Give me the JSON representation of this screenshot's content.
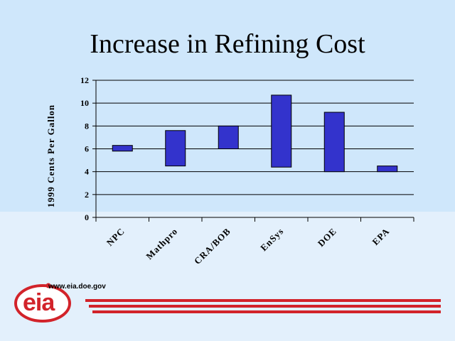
{
  "title": "Increase in Refining Cost",
  "logo": {
    "url": "www.eia.doe.gov",
    "wordmark": "eia"
  },
  "colors": {
    "bar": "#3333cc",
    "background": "#cfe7fb",
    "logo_red": "#d2232a"
  },
  "chart_data": {
    "type": "bar",
    "subtype": "floating-range",
    "title": "Increase in Refining Cost",
    "xlabel": "",
    "ylabel": "1999 Cents Per Gallon",
    "ylim": [
      0,
      12
    ],
    "yticks": [
      0,
      2,
      4,
      6,
      8,
      10,
      12
    ],
    "grid": true,
    "categories": [
      "NPC",
      "Mathpro",
      "CRA/BOB",
      "EnSys",
      "DOE",
      "EPA"
    ],
    "series": [
      {
        "low": [
          5.8,
          4.5,
          6.0,
          4.4,
          4.0,
          4.0
        ],
        "high": [
          6.3,
          7.6,
          8.0,
          10.7,
          9.2,
          4.5
        ]
      }
    ]
  }
}
